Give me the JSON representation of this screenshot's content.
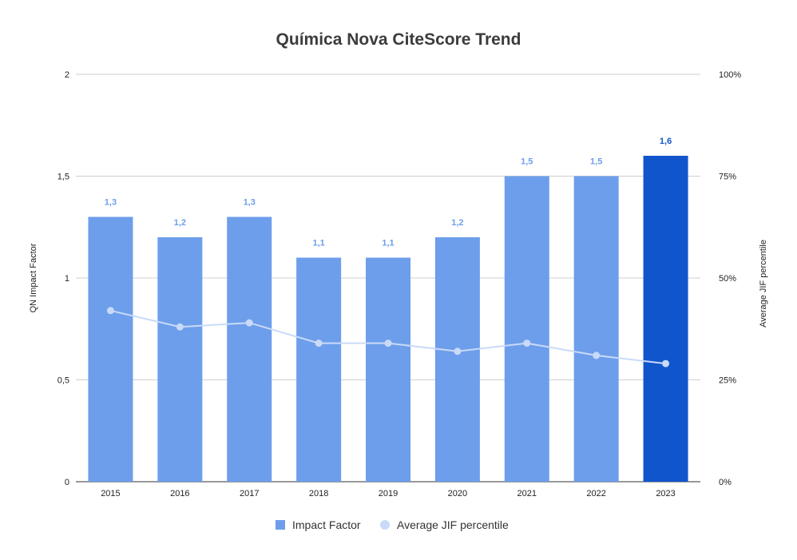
{
  "chart_data": {
    "type": "bar",
    "title": "Química Nova CiteScore Trend",
    "categories": [
      "2015",
      "2016",
      "2017",
      "2018",
      "2019",
      "2020",
      "2021",
      "2022",
      "2023"
    ],
    "series": [
      {
        "name": "Impact Factor",
        "type": "bar",
        "axis": "left",
        "values": [
          1.3,
          1.2,
          1.3,
          1.1,
          1.1,
          1.2,
          1.5,
          1.5,
          1.6
        ],
        "data_labels": [
          "1,3",
          "1,2",
          "1,3",
          "1,1",
          "1,1",
          "1,2",
          "1,5",
          "1,5",
          "1,6"
        ],
        "color": "#6d9eeb",
        "highlight_color": "#1155cc",
        "highlight_index": 8
      },
      {
        "name": "Average JIF percentile",
        "type": "line",
        "axis": "right",
        "values": [
          42,
          38,
          39,
          34,
          34,
          32,
          34,
          31,
          29
        ],
        "color": "#c9daf8"
      }
    ],
    "ylabel": "QN Impact Factor",
    "ylabel_right": "Average JIF percentile",
    "ylim": [
      0,
      2
    ],
    "ylim_right": [
      0,
      100
    ],
    "yticks": [
      "0",
      "0,5",
      "1",
      "1,5",
      "2"
    ],
    "yticks_right": [
      "0%",
      "25%",
      "50%",
      "75%",
      "100%"
    ],
    "grid": true,
    "legend_position": "bottom"
  }
}
